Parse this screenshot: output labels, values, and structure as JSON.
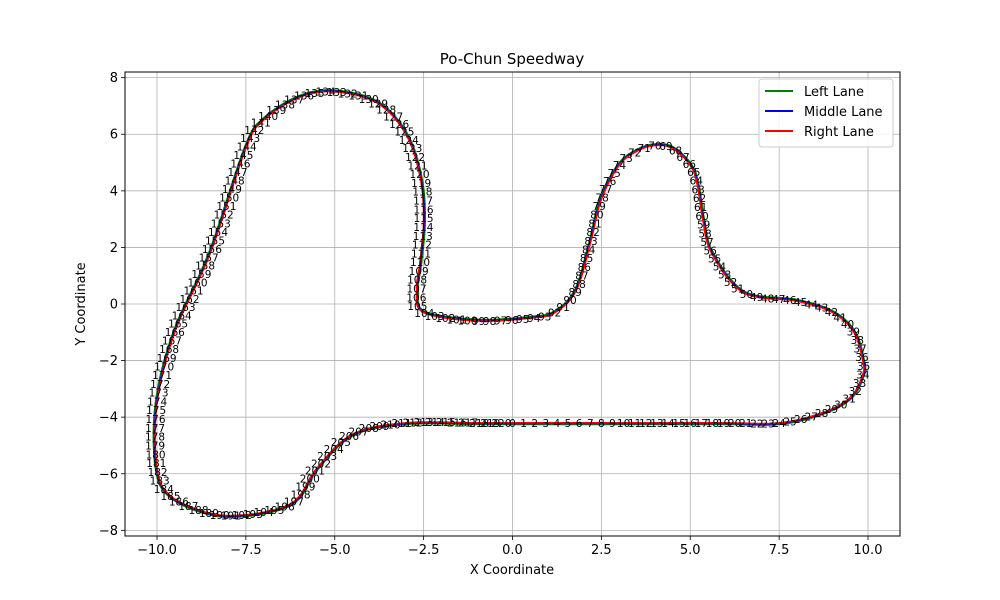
{
  "chart_data": {
    "type": "line",
    "title": "Po-Chun Speedway",
    "xlabel": "X Coordinate",
    "ylabel": "Y Coordinate",
    "xlim": [
      -10.9,
      10.9
    ],
    "ylim": [
      -8.2,
      8.2
    ],
    "xticks": [
      -10.0,
      -7.5,
      -5.0,
      -2.5,
      0.0,
      2.5,
      5.0,
      7.5,
      10.0
    ],
    "yticks": [
      -8,
      -6,
      -4,
      -2,
      0,
      2,
      4,
      6,
      8
    ],
    "xtick_labels": [
      "−10.0",
      "−7.5",
      "−5.0",
      "−2.5",
      "0.0",
      "2.5",
      "5.0",
      "7.5",
      "10.0"
    ],
    "ytick_labels": [
      "−8",
      "−6",
      "−4",
      "−2",
      "0",
      "2",
      "4",
      "6",
      "8"
    ],
    "grid": true,
    "legend_position": "top-right",
    "series": [
      {
        "name": "Left Lane",
        "color": "#008000"
      },
      {
        "name": "Middle Lane",
        "color": "#0000ff"
      },
      {
        "name": "Right Lane",
        "color": "#ff0000"
      }
    ],
    "waypoint_start": 0,
    "waypoint_end": 220,
    "x": [
      0.0,
      2.0,
      4.0,
      6.0,
      7.5,
      8.7,
      9.5,
      9.85,
      9.85,
      9.6,
      9.0,
      8.0,
      6.5,
      5.6,
      5.35,
      5.2,
      5.0,
      4.5,
      4.0,
      3.5,
      3.0,
      2.5,
      2.2,
      1.8,
      1.2,
      0.5,
      -1.0,
      -2.5,
      -2.7,
      -2.6,
      -2.5,
      -2.6,
      -3.0,
      -3.8,
      -5.0,
      -6.0,
      -7.0,
      -7.5,
      -8.5,
      -9.5,
      -10.0,
      -10.0,
      -9.6,
      -8.5,
      -7.5,
      -6.5,
      -6.0,
      -5.5,
      -4.5,
      -3.0,
      -1.0,
      0.0
    ],
    "y": [
      -4.2,
      -4.2,
      -4.2,
      -4.2,
      -4.2,
      -3.85,
      -3.3,
      -2.5,
      -2.0,
      -1.0,
      -0.3,
      0.1,
      0.4,
      1.8,
      3.0,
      4.2,
      4.9,
      5.5,
      5.6,
      5.4,
      4.9,
      3.7,
      2.2,
      0.5,
      -0.3,
      -0.5,
      -0.6,
      -0.3,
      0.5,
      1.5,
      3.0,
      4.5,
      6.0,
      7.1,
      7.5,
      7.3,
      6.5,
      5.5,
      1.8,
      -1.0,
      -3.5,
      -5.8,
      -6.8,
      -7.4,
      -7.45,
      -7.2,
      -6.8,
      -5.8,
      -4.6,
      -4.2,
      -4.2,
      -4.2
    ]
  }
}
